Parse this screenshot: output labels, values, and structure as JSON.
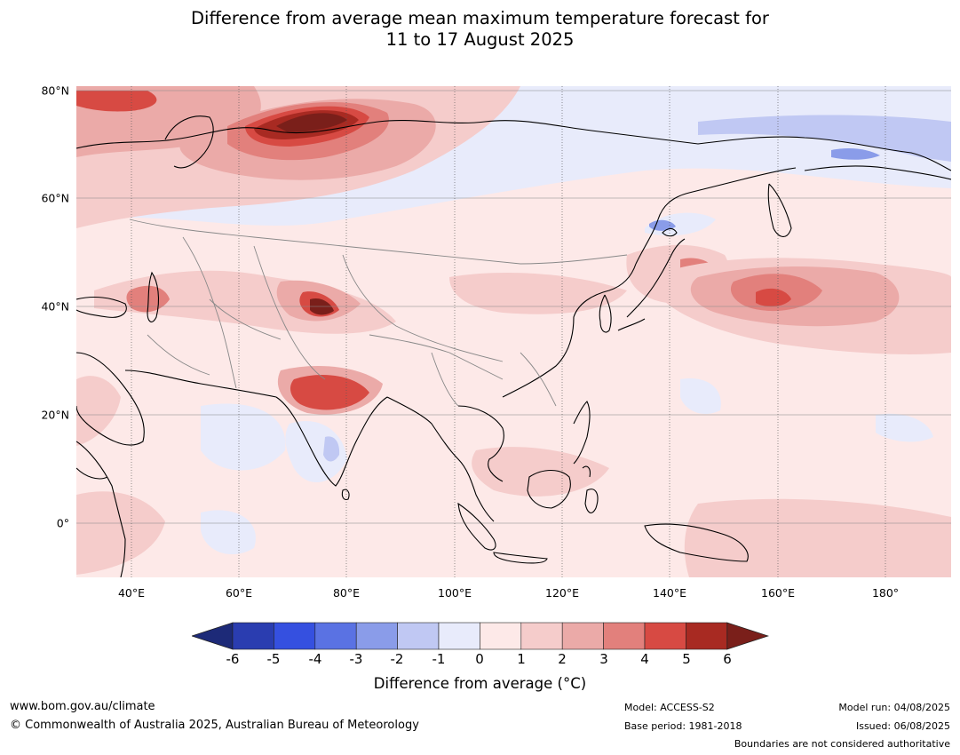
{
  "title": {
    "line1": "Difference from average mean maximum temperature forecast for",
    "line2": "11 to 17 August 2025"
  },
  "map": {
    "lat_labels": [
      "80°N",
      "60°N",
      "40°N",
      "20°N",
      "0°"
    ],
    "lon_labels": [
      "40°E",
      "60°E",
      "80°E",
      "100°E",
      "120°E",
      "140°E",
      "160°E",
      "180°"
    ]
  },
  "colorbar": {
    "ticks": [
      "-6",
      "-5",
      "-4",
      "-3",
      "-2",
      "-1",
      "0",
      "1",
      "2",
      "3",
      "4",
      "5",
      "6"
    ],
    "colors": [
      "#1d2a78",
      "#2a3db0",
      "#3550e0",
      "#5a72e3",
      "#8a9ce9",
      "#c0c8f3",
      "#e8ebfb",
      "#fde9e8",
      "#f5cccb",
      "#ebaaa8",
      "#e2807c",
      "#d74a43",
      "#a82a22",
      "#7a1f1a"
    ],
    "label": "Difference from average (°C)"
  },
  "footer": {
    "website": "www.bom.gov.au/climate",
    "copyright": "© Commonwealth of Australia 2025, Australian Bureau of Meteorology",
    "model": "Model: ACCESS-S2",
    "base_period": "Base period: 1981-2018",
    "model_run": "Model run: 04/08/2025",
    "issued": "Issued: 06/08/2025",
    "disclaimer": "Boundaries are not considered authoritative"
  }
}
